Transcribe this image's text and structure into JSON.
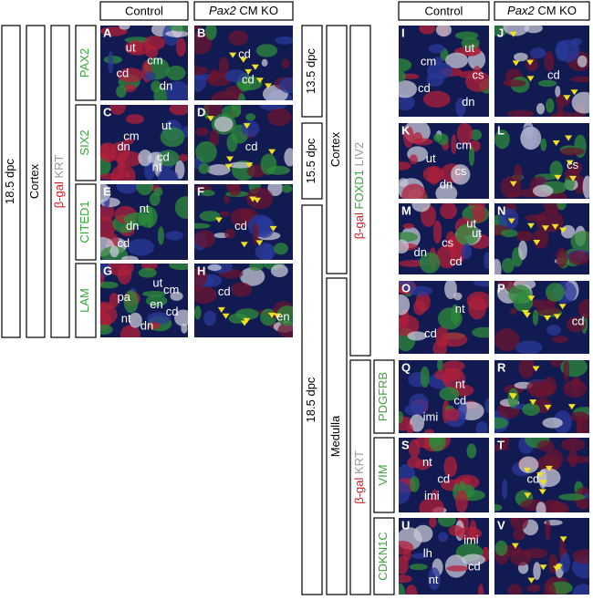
{
  "left": {
    "stage": "18.5 dpc",
    "region": "Cortex",
    "stain": [
      "β-gal",
      "KRT"
    ],
    "headers": {
      "control": "Control",
      "ko_gene": "Pax2",
      "ko_text": "CM KO"
    },
    "rows": [
      {
        "marker": "PAX2",
        "panels": [
          {
            "letter": "A",
            "labels": [
              "ut",
              "cm",
              "cd",
              "dn"
            ]
          },
          {
            "letter": "B",
            "labels": [
              "cd",
              "cd"
            ]
          }
        ]
      },
      {
        "marker": "SIX2",
        "panels": [
          {
            "letter": "C",
            "labels": [
              "ut",
              "cm",
              "dn",
              "cd",
              "nt"
            ]
          },
          {
            "letter": "D",
            "labels": [
              "cd"
            ]
          }
        ]
      },
      {
        "marker": "CITED1",
        "panels": [
          {
            "letter": "E",
            "labels": [
              "nt",
              "dn",
              "cd"
            ]
          },
          {
            "letter": "F",
            "labels": [
              "cd"
            ]
          }
        ]
      },
      {
        "marker": "LAM",
        "panels": [
          {
            "letter": "G",
            "labels": [
              "ut",
              "cm",
              "pa",
              "en",
              "cd",
              "nt",
              "dn"
            ]
          },
          {
            "letter": "H",
            "labels": [
              "cd",
              "en"
            ]
          }
        ]
      }
    ]
  },
  "right": {
    "stages": [
      "13.5 dpc",
      "15.5 dpc",
      "18.5 dpc"
    ],
    "regions": [
      "Cortex",
      "Medulla"
    ],
    "stains": [
      [
        "β-gal",
        "FOXD1",
        "LIV2"
      ],
      [
        "β-gal",
        "KRT"
      ]
    ],
    "headers": {
      "control": "Control",
      "ko_gene": "Pax2",
      "ko_text": "CM KO"
    },
    "rows": [
      {
        "panels": [
          {
            "letter": "I",
            "labels": [
              "ut",
              "cm",
              "cs",
              "cd",
              "dn"
            ]
          },
          {
            "letter": "J",
            "labels": [
              "cd"
            ]
          }
        ]
      },
      {
        "panels": [
          {
            "letter": "K",
            "labels": [
              "cm",
              "ut",
              "cs",
              "dn"
            ]
          },
          {
            "letter": "L",
            "labels": [
              "cs"
            ]
          }
        ]
      },
      {
        "panels": [
          {
            "letter": "M",
            "labels": [
              "ut",
              "ut",
              "cs",
              "dn",
              "cd"
            ]
          },
          {
            "letter": "N",
            "labels": []
          }
        ]
      },
      {
        "panels": [
          {
            "letter": "O",
            "labels": [
              "nt",
              "cd"
            ]
          },
          {
            "letter": "P",
            "labels": [
              "cd"
            ]
          }
        ]
      },
      {
        "marker": "PDGFRB",
        "panels": [
          {
            "letter": "Q",
            "labels": [
              "nt",
              "cd",
              "imi"
            ]
          },
          {
            "letter": "R",
            "labels": []
          }
        ]
      },
      {
        "marker": "VIM",
        "panels": [
          {
            "letter": "S",
            "labels": [
              "nt",
              "cd",
              "imi"
            ]
          },
          {
            "letter": "T",
            "labels": [
              "cd"
            ]
          }
        ]
      },
      {
        "marker": "CDKN1C",
        "panels": [
          {
            "letter": "U",
            "labels": [
              "imi",
              "lh",
              "cd",
              "nt"
            ]
          },
          {
            "letter": "V",
            "labels": []
          }
        ]
      }
    ]
  }
}
